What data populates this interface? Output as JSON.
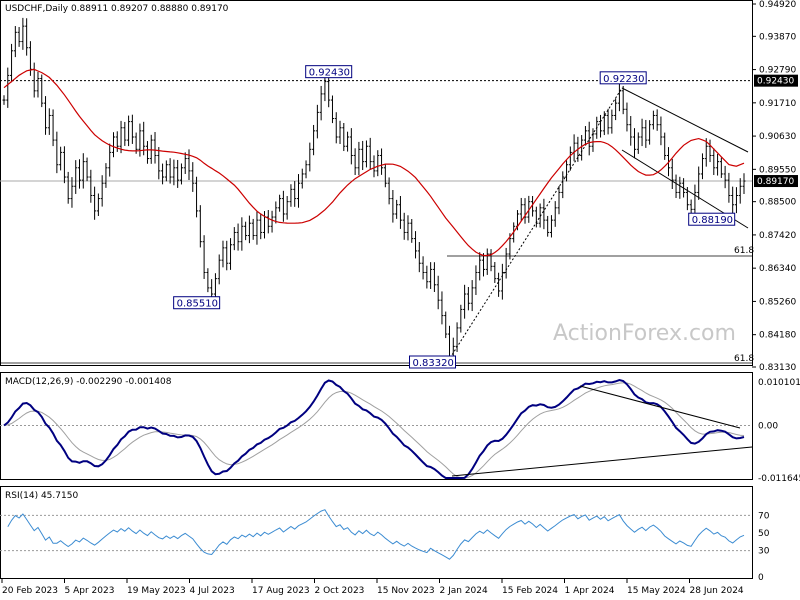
{
  "chart_data": [
    {
      "type": "ohlc",
      "title": "USDCHF,Daily  0.88911 0.89207 0.88880 0.89170",
      "symbol": "USDCHF",
      "timeframe": "Daily",
      "last_ohlc": [
        0.88911,
        0.89207,
        0.8888,
        0.8917
      ],
      "ylim": [
        0.8313,
        0.9492
      ],
      "y_ticks": [
        "0.94920",
        "0.93870",
        "0.92790",
        "0.91710",
        "0.90630",
        "0.89550",
        "0.88500",
        "0.87420",
        "0.86340",
        "0.85260",
        "0.84180",
        "0.83130"
      ],
      "x_ticks": [
        "20 Feb 2023",
        "5 Apr 2023",
        "19 May 2023",
        "4 Jul 2023",
        "17 Aug 2023",
        "2 Oct 2023",
        "15 Nov 2023",
        "2 Jan 2024",
        "15 Feb 2024",
        "1 Apr 2024",
        "15 May 2024",
        "28 Jun 2024"
      ],
      "current_price": "0.89170",
      "resistance_label": "0.92430",
      "swing_labels": [
        {
          "text": "0.92430",
          "value": 0.9243,
          "bar": 86
        },
        {
          "text": "0.85510",
          "value": 0.8551,
          "bar": 55
        },
        {
          "text": "0.83320",
          "value": 0.8332,
          "bar": 118
        },
        {
          "text": "0.92230",
          "value": 0.9223,
          "bar": 164
        },
        {
          "text": "0.88190",
          "value": 0.8819,
          "bar": 184
        }
      ],
      "fib_labels": [
        "61.8",
        "61.8"
      ],
      "series": [
        {
          "name": "close",
          "values": [
            0.918,
            0.926,
            0.934,
            0.94,
            0.937,
            0.942,
            0.935,
            0.928,
            0.921,
            0.925,
            0.917,
            0.909,
            0.913,
            0.905,
            0.897,
            0.901,
            0.893,
            0.886,
            0.89,
            0.896,
            0.892,
            0.898,
            0.893,
            0.887,
            0.882,
            0.886,
            0.891,
            0.896,
            0.901,
            0.906,
            0.903,
            0.909,
            0.905,
            0.911,
            0.906,
            0.902,
            0.908,
            0.903,
            0.899,
            0.905,
            0.9,
            0.895,
            0.893,
            0.897,
            0.893,
            0.896,
            0.892,
            0.896,
            0.899,
            0.895,
            0.891,
            0.882,
            0.872,
            0.862,
            0.857,
            0.855,
            0.86,
            0.866,
            0.87,
            0.865,
            0.871,
            0.875,
            0.872,
            0.877,
            0.874,
            0.878,
            0.874,
            0.879,
            0.875,
            0.88,
            0.877,
            0.88,
            0.883,
            0.886,
            0.881,
            0.885,
            0.889,
            0.886,
            0.891,
            0.894,
            0.897,
            0.902,
            0.908,
            0.914,
            0.92,
            0.924,
            0.918,
            0.912,
            0.906,
            0.909,
            0.903,
            0.906,
            0.9,
            0.896,
            0.902,
            0.898,
            0.903,
            0.898,
            0.895,
            0.9,
            0.896,
            0.891,
            0.886,
            0.881,
            0.884,
            0.879,
            0.875,
            0.878,
            0.873,
            0.869,
            0.865,
            0.862,
            0.859,
            0.863,
            0.858,
            0.853,
            0.848,
            0.842,
            0.8345,
            0.838,
            0.844,
            0.85,
            0.855,
            0.852,
            0.857,
            0.862,
            0.866,
            0.863,
            0.868,
            0.864,
            0.86,
            0.856,
            0.862,
            0.868,
            0.873,
            0.877,
            0.881,
            0.884,
            0.88,
            0.885,
            0.882,
            0.878,
            0.883,
            0.879,
            0.875,
            0.879,
            0.883,
            0.888,
            0.893,
            0.897,
            0.901,
            0.904,
            0.9,
            0.905,
            0.908,
            0.903,
            0.907,
            0.911,
            0.908,
            0.913,
            0.909,
            0.913,
            0.917,
            0.921,
            0.915,
            0.91,
            0.906,
            0.902,
            0.906,
            0.909,
            0.905,
            0.91,
            0.913,
            0.91,
            0.906,
            0.9,
            0.896,
            0.892,
            0.888,
            0.891,
            0.888,
            0.884,
            0.8825,
            0.888,
            0.894,
            0.899,
            0.903,
            0.9,
            0.896,
            0.898,
            0.894,
            0.892,
            0.887,
            0.884,
            0.887,
            0.89,
            0.8917
          ]
        },
        {
          "name": "MA",
          "values": [
            0.922,
            0.924,
            0.926,
            0.9275,
            0.928,
            0.927,
            0.9255,
            0.923,
            0.92,
            0.9165,
            0.913,
            0.91,
            0.907,
            0.905,
            0.9035,
            0.9025,
            0.9018,
            0.9015,
            0.9015,
            0.9018,
            0.9018,
            0.9015,
            0.9012,
            0.901,
            0.9005,
            0.9,
            0.899,
            0.897,
            0.8955,
            0.894,
            0.892,
            0.89,
            0.887,
            0.884,
            0.8815,
            0.88,
            0.8788,
            0.8782,
            0.878,
            0.878,
            0.8782,
            0.879,
            0.8805,
            0.8825,
            0.885,
            0.888,
            0.8905,
            0.8925,
            0.894,
            0.8955,
            0.8965,
            0.8972,
            0.8972,
            0.8965,
            0.895,
            0.893,
            0.89,
            0.887,
            0.8835,
            0.88,
            0.877,
            0.874,
            0.871,
            0.8688,
            0.8675,
            0.8675,
            0.869,
            0.8715,
            0.8745,
            0.878,
            0.8815,
            0.885,
            0.8885,
            0.892,
            0.895,
            0.898,
            0.9005,
            0.9025,
            0.904,
            0.9045,
            0.9045,
            0.9035,
            0.9015,
            0.899,
            0.8965,
            0.8945,
            0.8935,
            0.8938,
            0.8955,
            0.898,
            0.901,
            0.9035,
            0.905,
            0.9055,
            0.9045,
            0.902,
            0.8995,
            0.897,
            0.8965,
            0.8975
          ]
        }
      ]
    },
    {
      "type": "line",
      "title": "MACD(12,26,9) -0.002290 -0.001408",
      "ylim": [
        -0.011645,
        0.010101
      ],
      "y_ticks": [
        "0.010101",
        "0.00",
        "-0.011645"
      ]
    },
    {
      "type": "line",
      "title": "RSI(14) 45.7150",
      "ylim": [
        0,
        100
      ],
      "y_ticks": [
        "70",
        "50",
        "30",
        "0"
      ]
    }
  ],
  "watermark": "ActionForex.com",
  "colors": {
    "price": "#000000",
    "ma": "#cc0000",
    "macd": "#000080",
    "signal": "#a0a0a0",
    "rsi": "#3c8cd2",
    "box": "#000080"
  }
}
